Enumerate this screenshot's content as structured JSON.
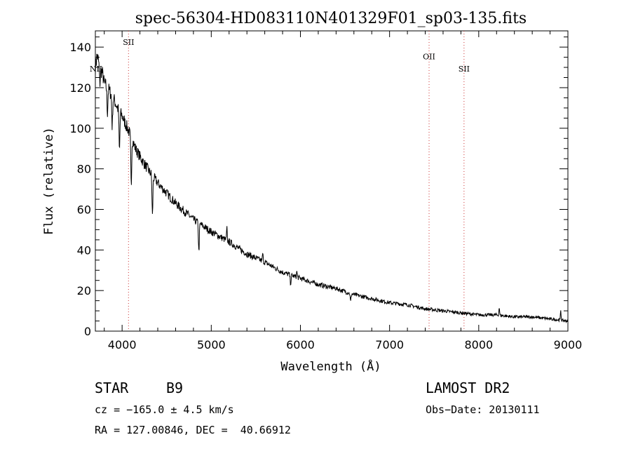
{
  "chart_data": {
    "type": "line",
    "title": "spec-56304-HD083110N401329F01_sp03-135.fits",
    "xlabel": "Wavelength (Å)",
    "ylabel": "Flux (relative)",
    "xlim": [
      3700,
      9000
    ],
    "ylim": [
      0,
      148
    ],
    "x_ticks": [
      4000,
      5000,
      6000,
      7000,
      8000,
      9000
    ],
    "y_ticks": [
      0,
      20,
      40,
      60,
      80,
      100,
      120,
      140
    ],
    "x_tick_labels": [
      "4000",
      "5000",
      "6000",
      "7000",
      "8000",
      "9000"
    ],
    "y_tick_labels": [
      "0",
      "20",
      "40",
      "60",
      "80",
      "100",
      "120",
      "140"
    ],
    "line_color": "#000000",
    "marker_color": "#cc3333",
    "series": [
      {
        "x": [
          3700,
          3720,
          3750,
          3780,
          3800,
          3850,
          3900,
          3950,
          4000,
          4050,
          4100,
          4150,
          4200,
          4300,
          4400,
          4500,
          4600,
          4700,
          4800,
          4900,
          5000,
          5200,
          5400,
          5600,
          5800,
          6000,
          6200,
          6400,
          6600,
          6800,
          7000,
          7200,
          7400,
          7600,
          7800,
          8000,
          8200,
          8400,
          8600,
          8800,
          9000
        ],
        "y": [
          130,
          136,
          130,
          127,
          122,
          119,
          115,
          110,
          106,
          101,
          96,
          90,
          86,
          79,
          73,
          68,
          63,
          59,
          55,
          52,
          49,
          44,
          38,
          34,
          29,
          26,
          23,
          21,
          18,
          16,
          14,
          13,
          11,
          10,
          9,
          8,
          8,
          7,
          7,
          6,
          5
        ]
      }
    ],
    "absorption_features": [
      {
        "x": 3750,
        "depth": 8
      },
      {
        "x": 3835,
        "depth": 12
      },
      {
        "x": 3889,
        "depth": 15
      },
      {
        "x": 3970,
        "depth": 20
      },
      {
        "x": 4102,
        "depth": 24
      },
      {
        "x": 4340,
        "depth": 20
      },
      {
        "x": 4861,
        "depth": 14
      },
      {
        "x": 5890,
        "depth": 4
      },
      {
        "x": 6563,
        "depth": 4
      }
    ],
    "emission_features": [
      {
        "x": 5175,
        "height": 6
      },
      {
        "x": 5577,
        "height": 4
      },
      {
        "x": 5960,
        "height": 3
      },
      {
        "x": 8230,
        "height": 4
      },
      {
        "x": 8920,
        "height": 5
      }
    ],
    "line_markers": [
      {
        "label": "NII",
        "x": 3700,
        "label_flux": 128
      },
      {
        "label": "SII",
        "x": 4072,
        "label_flux": 141
      },
      {
        "label": "OII",
        "x": 7443,
        "label_flux": 134
      },
      {
        "label": "SII",
        "x": 7835,
        "label_flux": 128
      }
    ]
  },
  "info": {
    "object_class": "STAR",
    "subclass": "B9",
    "survey": "LAMOST DR2",
    "cz": "cz = −165.0 ± 4.5 km/s",
    "obs_date": "Obs−Date: 20130111",
    "coords": "RA = 127.00846, DEC =  40.66912"
  }
}
